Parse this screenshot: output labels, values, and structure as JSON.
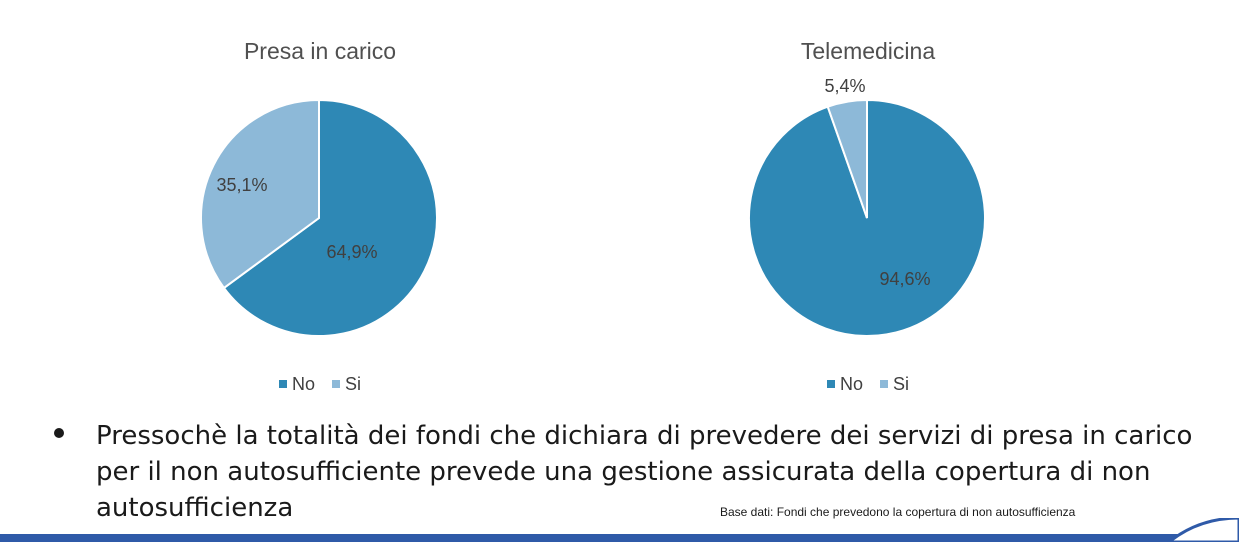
{
  "chart_data": [
    {
      "type": "pie",
      "title": "Presa in carico",
      "slices": [
        {
          "label": "No",
          "value": 64.9,
          "text": "64,9%",
          "color": "#2e88b5"
        },
        {
          "label": "Si",
          "value": 35.1,
          "text": "35,1%",
          "color": "#8db9d8"
        }
      ],
      "legend": {
        "placement": "bottom",
        "entries": [
          "No",
          "Si"
        ]
      }
    },
    {
      "type": "pie",
      "title": "Telemedicina",
      "slices": [
        {
          "label": "No",
          "value": 94.6,
          "text": "94,6%",
          "color": "#2e88b5"
        },
        {
          "label": "Si",
          "value": 5.4,
          "text": "5,4%",
          "color": "#8db9d8"
        }
      ],
      "legend": {
        "placement": "bottom",
        "entries": [
          "No",
          "Si"
        ]
      }
    }
  ],
  "bullet_text": "Pressochè la totalità dei fondi che dichiara di prevedere dei servizi di presa in carico per il non autosufficiente prevede una gestione assicurata della copertura di non autosufficienza",
  "source_note": "Base dati: Fondi che prevedono la copertura di non autosufficienza",
  "colors": {
    "bar": "#2f5aa8"
  }
}
